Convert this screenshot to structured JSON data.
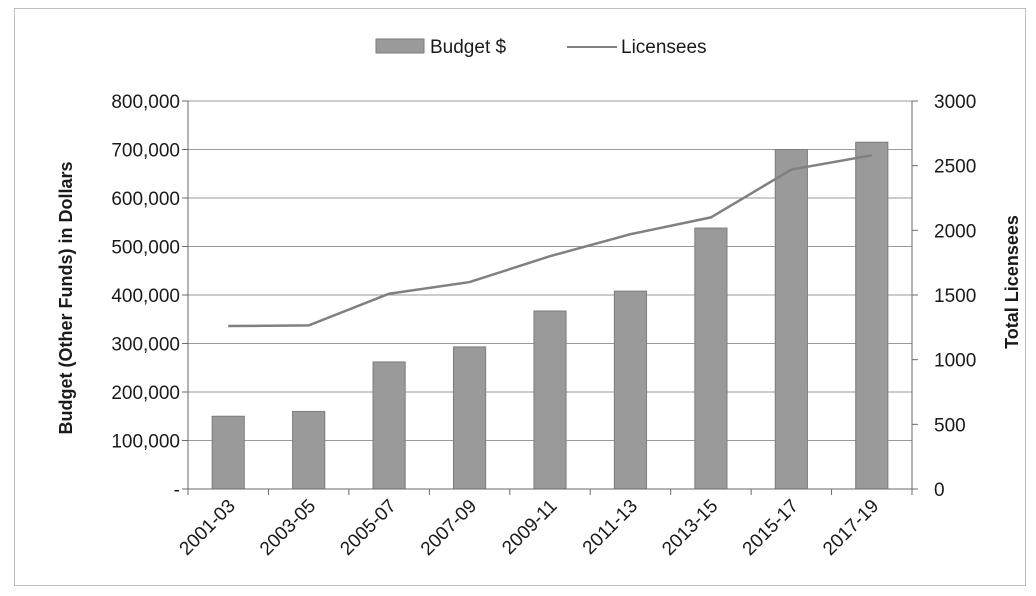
{
  "chart_data": {
    "type": "bar",
    "categories": [
      "2001-03",
      "2003-05",
      "2005-07",
      "2007-09",
      "2009-11",
      "2011-13",
      "2013-15",
      "2015-17",
      "2017-19"
    ],
    "series": [
      {
        "name": "Budget $",
        "type": "bar",
        "axis": "left",
        "color": "#9a9a9a",
        "values": [
          150000,
          160000,
          262000,
          293000,
          367000,
          408000,
          538000,
          700000,
          715000
        ]
      },
      {
        "name": "Licensees",
        "type": "line",
        "axis": "right",
        "color": "#808080",
        "values": [
          1260,
          1265,
          1510,
          1600,
          1800,
          1970,
          2100,
          2470,
          2580
        ]
      }
    ],
    "title": "",
    "xlabel": "",
    "ylabel": "Budget (Other Funds) in Dollars",
    "y2label": "Total Licensees",
    "ylim": [
      0,
      800000
    ],
    "y2lim": [
      0,
      3000
    ],
    "y_ticks": [
      "-",
      "100,000",
      "200,000",
      "300,000",
      "400,000",
      "500,000",
      "600,000",
      "700,000",
      "800,000"
    ],
    "y2_ticks": [
      "0",
      "500",
      "1000",
      "1500",
      "2000",
      "2500",
      "3000"
    ],
    "grid": true,
    "legend_position": "top"
  }
}
